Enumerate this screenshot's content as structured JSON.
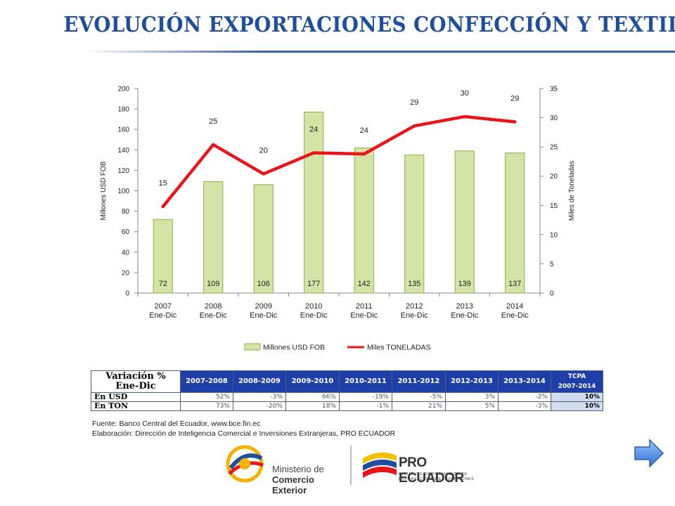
{
  "page": {
    "title": "EVOLUCIÓN EXPORTACIONES CONFECCIÓN Y TEXTIL"
  },
  "chart_data": {
    "type": "bar",
    "categories": [
      "2007\nEne-Dic",
      "2008\nEne-Dic",
      "2009\nEne-Dic",
      "2010\nEne-Dic",
      "2011\nEne-Dic",
      "2012\nEne-Dic",
      "2013\nEne-Dic",
      "2014\nEne-Dic"
    ],
    "series": [
      {
        "name": "Millones USD FOB",
        "kind": "bar",
        "axis": "left",
        "values": [
          72,
          109,
          106,
          177,
          142,
          135,
          139,
          137
        ],
        "labels": [
          "72",
          "109",
          "106",
          "177",
          "142",
          "135",
          "139",
          "137"
        ]
      },
      {
        "name": "Miles TONELADAS",
        "kind": "line",
        "axis": "right",
        "values": [
          14.8,
          25.4,
          20.4,
          24.0,
          23.8,
          28.6,
          30.2,
          29.3
        ],
        "labels": [
          "15",
          "25",
          "20",
          "24",
          "24",
          "29",
          "30",
          "29"
        ]
      }
    ],
    "ylabel": "Millones USD FOB",
    "y2label": "Miles de Toneladas",
    "ylim": [
      0,
      200
    ],
    "yticks": [
      0,
      20,
      40,
      60,
      80,
      100,
      120,
      140,
      160,
      180,
      200
    ],
    "y2lim": [
      0,
      35
    ],
    "y2ticks": [
      0,
      5,
      10,
      15,
      20,
      25,
      30,
      35
    ],
    "legend_position": "bottom",
    "grid": false,
    "colors": {
      "bar_fill": "#d3e4a6",
      "bar_stroke": "#8fae4c",
      "line": "#e8161b"
    }
  },
  "table": {
    "header_label": "Variación %\nEne-Dic",
    "periods": [
      "2007-2008",
      "2008-2009",
      "2009-2010",
      "2010-2011",
      "2011-2012",
      "2012-2013",
      "2013-2014"
    ],
    "tcpa_label": "TCPA\n2007-2014",
    "rows": [
      {
        "label": "En USD",
        "values": [
          "52%",
          "-3%",
          "66%",
          "-19%",
          "-5%",
          "3%",
          "-2%"
        ],
        "tcpa": "10%"
      },
      {
        "label": "En TON",
        "values": [
          "73%",
          "-20%",
          "18%",
          "-1%",
          "21%",
          "5%",
          "-3%"
        ],
        "tcpa": "10%"
      }
    ]
  },
  "source": {
    "line1": "Fuente: Banco Central del Ecuador, www.bce.fin.ec",
    "line2": "Elaboración: Dirección de Inteligencia Comercial e Inversiones Extranjeras, PRO ECUADOR"
  },
  "logos": {
    "mincex_line1": "Ministerio de",
    "mincex_line2": "Comercio Exterior",
    "pro_main": "PRO ECUADOR",
    "pro_sub": "INSTITUTO DE PROMOCIÓN DE EXPORTACIONES E INVERSIONES"
  },
  "icons": {
    "next": "arrow-right-icon"
  }
}
